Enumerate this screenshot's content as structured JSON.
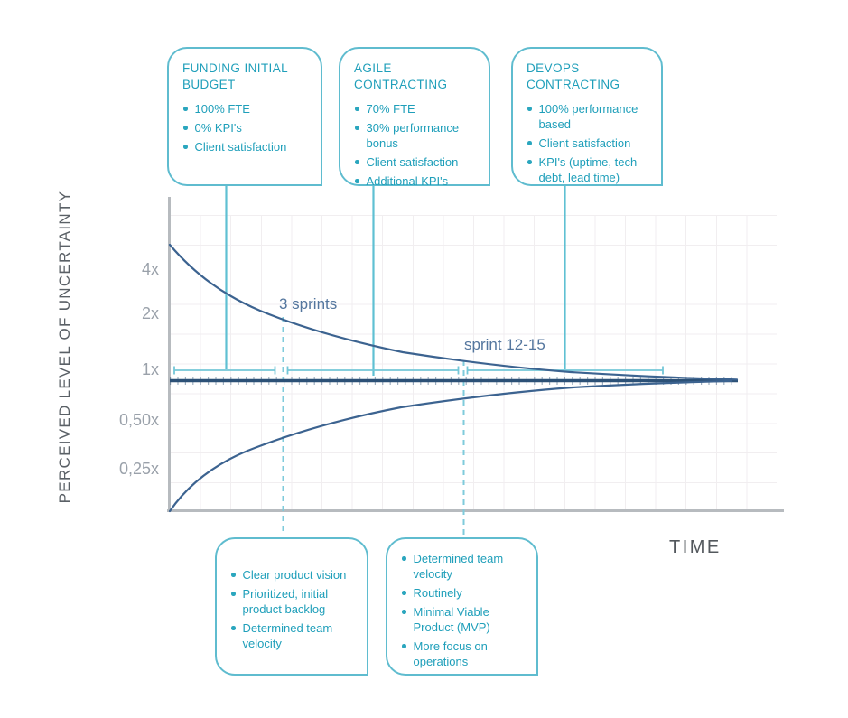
{
  "axes": {
    "y_title": "PERCEIVED LEVEL OF UNCERTAINTY",
    "x_title": "TIME",
    "y_ticks": [
      "4x",
      "2x",
      "1x",
      "0,50x",
      "0,25x"
    ]
  },
  "annotations": {
    "early": "3 sprints",
    "late": "sprint 12-15"
  },
  "callouts": {
    "top": [
      {
        "title": "FUNDING INITIAL\nBUDGET",
        "bullets": [
          "100% FTE",
          "0% KPI's",
          "Client satisfaction"
        ]
      },
      {
        "title": "AGILE\nCONTRACTING",
        "bullets": [
          "70% FTE",
          "30% performance bonus",
          "Client satisfaction",
          "Additional KPI's"
        ]
      },
      {
        "title": "DEVOPS\nCONTRACTING",
        "bullets": [
          "100% performance based",
          "Client satisfaction",
          "KPI's (uptime, tech debt, lead time)"
        ]
      }
    ],
    "bottom": [
      {
        "bullets": [
          "Clear product vision",
          "Prioritized, initial product backlog",
          "Determined team velocity"
        ]
      },
      {
        "bullets": [
          "Determined team velocity",
          "Routinely",
          "Minimal Viable Product (MVP)",
          "More focus on operations"
        ]
      }
    ]
  },
  "colors": {
    "box_border_teal": "#5fbccf",
    "box_text_teal": "#1f9fba",
    "connector_teal": "#5fc0d3",
    "bracket_teal": "#74c7d8",
    "dashed_teal": "#7fcbdb",
    "curve_navy": "#3c6390",
    "baseline_navy": "#2c5177",
    "annotation_slate": "#54769e",
    "tick_gray": "#9aa1aa",
    "axis_gray": "#b7bbbf",
    "grid_gray": "#f1eef0"
  },
  "chart_data": {
    "type": "line",
    "title": "",
    "xlabel": "TIME",
    "ylabel": "PERCEIVED LEVEL OF UNCERTAINTY",
    "y_tick_labels": [
      "4x",
      "2x",
      "1x",
      "0,50x",
      "0,25x"
    ],
    "grid": true,
    "legend": false,
    "x_relative": [
      0,
      0.1,
      0.2,
      0.33,
      0.48,
      0.65,
      0.83,
      1.0
    ],
    "series": [
      {
        "name": "upper uncertainty bound",
        "values": [
          4.8,
          2.6,
          1.8,
          1.4,
          1.18,
          1.07,
          1.02,
          1.0
        ]
      },
      {
        "name": "lower uncertainty bound",
        "values": [
          0.2,
          0.45,
          0.62,
          0.78,
          0.88,
          0.94,
          0.98,
          1.0
        ]
      },
      {
        "name": "1x baseline",
        "values": [
          1.0,
          1.0,
          1.0,
          1.0,
          1.0,
          1.0,
          1.0,
          1.0
        ]
      }
    ],
    "annotations": [
      "3 sprints",
      "sprint 12-15"
    ]
  }
}
